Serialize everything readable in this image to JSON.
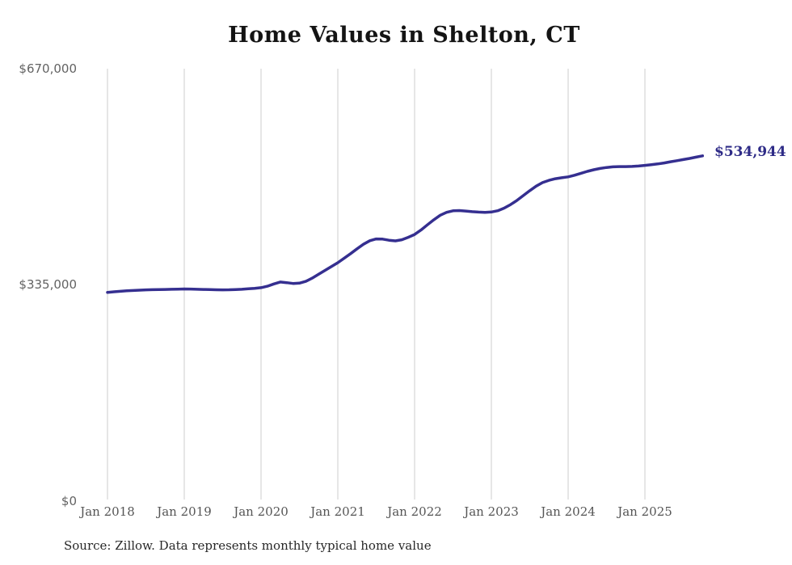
{
  "page": {
    "background_color": "#ffffff"
  },
  "chart_data": {
    "type": "line",
    "title": "Home Values in Shelton, CT",
    "xlabel": "",
    "ylabel": "",
    "ylim": [
      0,
      670000
    ],
    "y_tick_labels": [
      "$670,000",
      "$335,000",
      "$0"
    ],
    "y_tick_values": [
      670000,
      335000,
      0
    ],
    "x_tick_labels": [
      "Jan 2018",
      "Jan 2019",
      "Jan 2020",
      "Jan 2021",
      "Jan 2022",
      "Jan 2023",
      "Jan 2024",
      "Jan 2025"
    ],
    "grid": "vertical-only",
    "legend": "none",
    "start_month": "2018-01",
    "end_month": "2025-10",
    "frequency": "monthly",
    "end_point_label": "$534,944",
    "end_value": 534944,
    "colors": {
      "line": "#352f90",
      "end_label": "#2e2b87",
      "gridline": "#cccccc",
      "y_axis_text": "#636363",
      "x_axis_text": "#555555",
      "title_text": "#141414"
    },
    "series": [
      {
        "name": "Typical home value",
        "values": [
          323500,
          324300,
          325100,
          325800,
          326400,
          326900,
          327300,
          327600,
          327800,
          328000,
          328200,
          328500,
          328800,
          328600,
          328300,
          328000,
          327700,
          327500,
          327400,
          327500,
          327800,
          328300,
          329000,
          329800,
          330800,
          333000,
          336500,
          339500,
          338500,
          337200,
          337800,
          340500,
          345500,
          351500,
          357500,
          363500,
          369500,
          376500,
          383500,
          391000,
          398000,
          403500,
          406300,
          406000,
          404200,
          403200,
          405000,
          408800,
          413200,
          420000,
          428000,
          436000,
          443000,
          447500,
          449800,
          450200,
          449500,
          448500,
          447800,
          447500,
          448000,
          450000,
          454000,
          459500,
          466000,
          473500,
          481000,
          488000,
          493500,
          497000,
          499500,
          501000,
          502400,
          505000,
          508000,
          511000,
          513500,
          515500,
          517000,
          518000,
          518300,
          518300,
          518600,
          519200,
          520200,
          521300,
          522500,
          524000,
          525800,
          527500,
          529200,
          531000,
          533000,
          534944
        ]
      }
    ]
  },
  "footer": {
    "source_note": "Source: Zillow. Data represents monthly typical home value"
  }
}
